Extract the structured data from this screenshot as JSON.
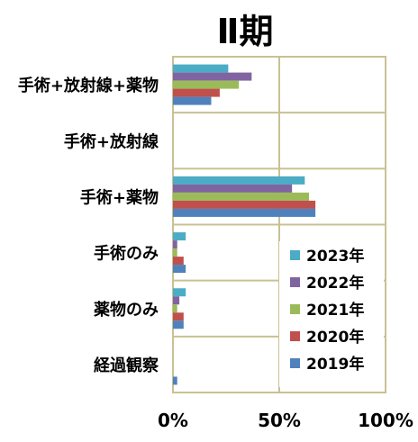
{
  "chart_data": {
    "type": "bar",
    "orientation": "horizontal",
    "title": "Ⅱ期",
    "categories": [
      "手術+放射線+薬物",
      "手術+放射線",
      "手術+薬物",
      "手術のみ",
      "薬物のみ",
      "経過観察"
    ],
    "x_ticks": [
      "0%",
      "50%",
      "100%"
    ],
    "xlim": [
      0,
      100
    ],
    "grid": "vertical lines at 50%",
    "legend_position": "right, lower half",
    "series": [
      {
        "name": "2023年",
        "color": "#4bacc6",
        "values": [
          26,
          0,
          62,
          6,
          6,
          0
        ]
      },
      {
        "name": "2022年",
        "color": "#8064a2",
        "values": [
          37,
          0,
          56,
          2,
          3,
          0
        ]
      },
      {
        "name": "2021年",
        "color": "#9bbb59",
        "values": [
          31,
          0,
          64,
          2,
          2,
          0
        ]
      },
      {
        "name": "2020年",
        "color": "#c0504d",
        "values": [
          22,
          0,
          67,
          5,
          5,
          0
        ]
      },
      {
        "name": "2019年",
        "color": "#4f81bd",
        "values": [
          18,
          0,
          67,
          6,
          5,
          2
        ]
      }
    ]
  }
}
